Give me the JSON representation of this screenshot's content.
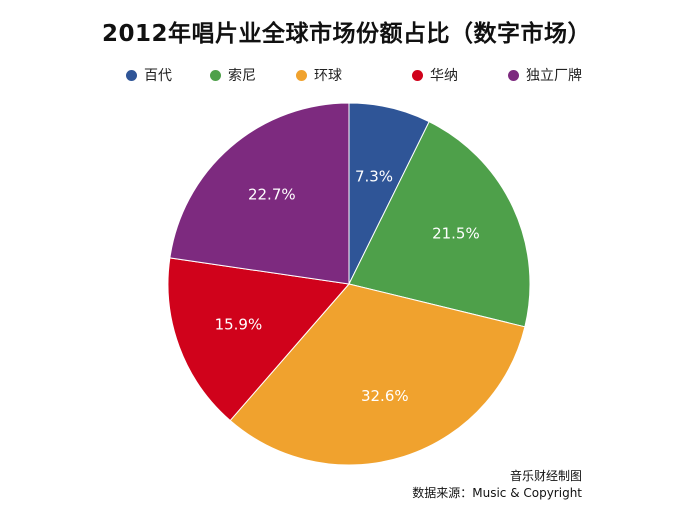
{
  "chart_data": {
    "type": "pie",
    "title": "2012年唱片业全球市场份额占比（数字市场）",
    "categories": [
      "百代",
      "索尼",
      "环球",
      "华纳",
      "独立厂牌"
    ],
    "values": [
      7.3,
      21.5,
      32.6,
      15.9,
      22.7
    ],
    "labels": [
      "7.3%",
      "21.5%",
      "32.6%",
      "15.9%",
      "22.7%"
    ],
    "colors": [
      "#2f5597",
      "#4ea04a",
      "#f0a22e",
      "#d0021b",
      "#7d2a7f"
    ],
    "legend_position": "top"
  },
  "footer": {
    "line1": "音乐财经制图",
    "line2": "数据来源：Music & Copyright"
  }
}
